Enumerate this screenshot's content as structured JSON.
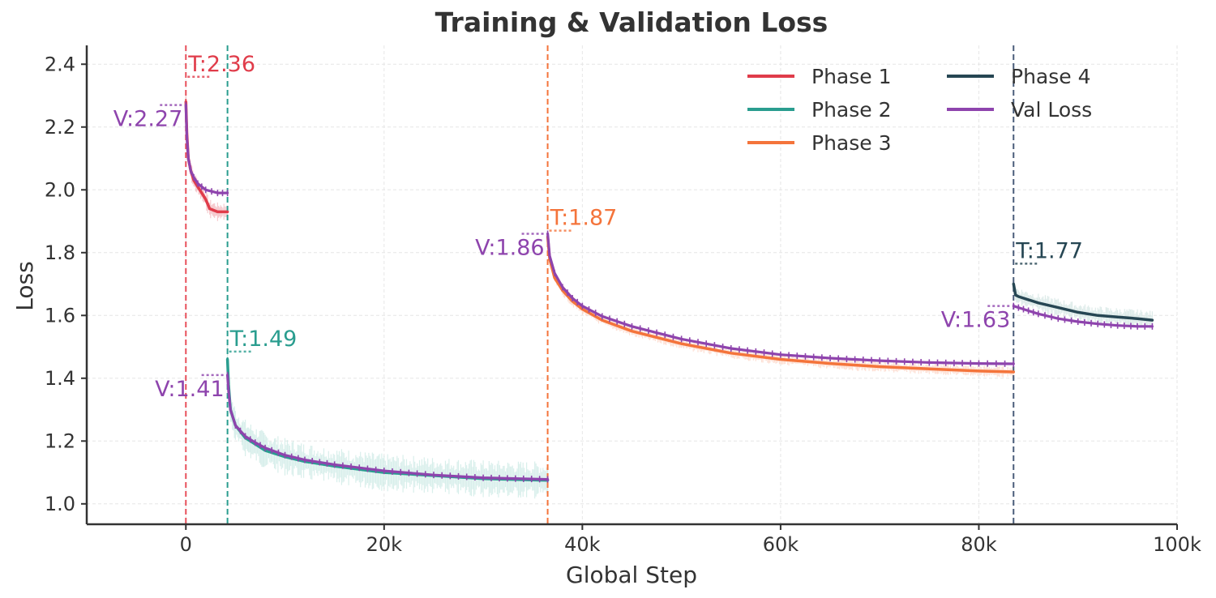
{
  "chart_data": {
    "type": "line",
    "title": "Training & Validation Loss",
    "xlabel": "Global Step",
    "ylabel": "Loss",
    "xlim": [
      -10000,
      100000
    ],
    "ylim": [
      0.935,
      2.46
    ],
    "xticks": [
      0,
      20000,
      40000,
      60000,
      80000,
      100000
    ],
    "xtick_labels": [
      "0",
      "20k",
      "40k",
      "60k",
      "80k",
      "100k"
    ],
    "yticks": [
      1.0,
      1.2,
      1.4,
      1.6,
      1.8,
      2.0,
      2.2,
      2.4
    ],
    "ytick_labels": [
      "1.0",
      "1.2",
      "1.4",
      "1.6",
      "1.8",
      "2.0",
      "2.2",
      "2.4"
    ],
    "grid": true,
    "legend_position": "top-right",
    "phase_boundaries": [
      {
        "x": 0,
        "color": "#e8505b"
      },
      {
        "x": 4200,
        "color": "#2a9d8f"
      },
      {
        "x": 36500,
        "color": "#f4743b"
      },
      {
        "x": 83500,
        "color": "#4a5d7a"
      }
    ],
    "series": [
      {
        "name": "Phase 1",
        "color": "#e03c4a",
        "band_color": "#f2b5bb",
        "x": [
          0,
          100,
          250,
          500,
          800,
          1200,
          1600,
          2000,
          2400,
          2800,
          3200,
          3600,
          4200
        ],
        "y": [
          2.28,
          2.18,
          2.1,
          2.06,
          2.03,
          2.01,
          1.99,
          1.97,
          1.94,
          1.935,
          1.93,
          1.93,
          1.93
        ]
      },
      {
        "name": "Phase 2",
        "color": "#2a9d8f",
        "band_color": "#c7e8e3",
        "x": [
          4200,
          4300,
          4500,
          5000,
          6000,
          7000,
          8000,
          10000,
          12000,
          15000,
          20000,
          25000,
          30000,
          36500
        ],
        "y": [
          1.46,
          1.38,
          1.3,
          1.25,
          1.21,
          1.19,
          1.17,
          1.15,
          1.135,
          1.12,
          1.1,
          1.09,
          1.08,
          1.075
        ]
      },
      {
        "name": "Phase 3",
        "color": "#f4743b",
        "band_color": "#fcd2c0",
        "x": [
          36500,
          36700,
          37200,
          38000,
          39000,
          40000,
          42000,
          45000,
          50000,
          55000,
          60000,
          65000,
          70000,
          75000,
          80000,
          83500
        ],
        "y": [
          1.85,
          1.78,
          1.72,
          1.68,
          1.645,
          1.62,
          1.585,
          1.55,
          1.51,
          1.48,
          1.46,
          1.447,
          1.437,
          1.43,
          1.423,
          1.42
        ]
      },
      {
        "name": "Phase 4",
        "color": "#264653",
        "band_color": "#cfe2df",
        "x": [
          83500,
          83700,
          84000,
          85000,
          86000,
          88000,
          90000,
          92000,
          94000,
          96000,
          97500
        ],
        "y": [
          1.7,
          1.665,
          1.66,
          1.65,
          1.64,
          1.625,
          1.61,
          1.6,
          1.595,
          1.59,
          1.585
        ]
      },
      {
        "name": "Val Loss",
        "color": "#8e44ad",
        "segments": [
          {
            "x": [
              0,
              100,
              250,
              500,
              800,
              1200,
              1600,
              2000,
              2600,
              3200,
              4200
            ],
            "y": [
              2.27,
              2.17,
              2.1,
              2.06,
              2.04,
              2.02,
              2.01,
              2.0,
              1.995,
              1.99,
              1.99
            ]
          },
          {
            "x": [
              4200,
              4300,
              4500,
              5000,
              6000,
              7000,
              8000,
              10000,
              12000,
              15000,
              20000,
              25000,
              30000,
              36500
            ],
            "y": [
              1.41,
              1.36,
              1.3,
              1.25,
              1.215,
              1.195,
              1.178,
              1.155,
              1.14,
              1.125,
              1.105,
              1.092,
              1.083,
              1.078
            ]
          },
          {
            "x": [
              36500,
              36700,
              37200,
              38000,
              39000,
              40000,
              42000,
              45000,
              50000,
              55000,
              60000,
              65000,
              70000,
              75000,
              80000,
              83500
            ],
            "y": [
              1.86,
              1.79,
              1.735,
              1.69,
              1.655,
              1.63,
              1.597,
              1.565,
              1.525,
              1.495,
              1.475,
              1.464,
              1.456,
              1.45,
              1.447,
              1.446
            ]
          },
          {
            "x": [
              83500,
              84000,
              85000,
              86000,
              88000,
              90000,
              92000,
              94000,
              96000,
              97500
            ],
            "y": [
              1.63,
              1.625,
              1.615,
              1.605,
              1.59,
              1.58,
              1.573,
              1.568,
              1.565,
              1.565
            ]
          }
        ]
      }
    ],
    "annotations": [
      {
        "text": "T:2.36",
        "x": 0,
        "y": 2.36,
        "color": "#e03c4a",
        "side": "right"
      },
      {
        "text": "V:2.27",
        "x": 0,
        "y": 2.27,
        "color": "#8e44ad",
        "side": "left"
      },
      {
        "text": "T:1.49",
        "x": 4200,
        "y": 1.485,
        "color": "#2a9d8f",
        "side": "right"
      },
      {
        "text": "V:1.41",
        "x": 4200,
        "y": 1.41,
        "color": "#8e44ad",
        "side": "left"
      },
      {
        "text": "T:1.87",
        "x": 36500,
        "y": 1.87,
        "color": "#f4743b",
        "side": "right"
      },
      {
        "text": "V:1.86",
        "x": 36500,
        "y": 1.86,
        "color": "#8e44ad",
        "side": "left"
      },
      {
        "text": "T:1.77",
        "x": 83500,
        "y": 1.765,
        "color": "#264653",
        "side": "right"
      },
      {
        "text": "V:1.63",
        "x": 83500,
        "y": 1.63,
        "color": "#8e44ad",
        "side": "left"
      }
    ],
    "legend": [
      {
        "label": "Phase 1",
        "color": "#e03c4a"
      },
      {
        "label": "Phase 2",
        "color": "#2a9d8f"
      },
      {
        "label": "Phase 3",
        "color": "#f4743b"
      },
      {
        "label": "Phase 4",
        "color": "#264653"
      },
      {
        "label": "Val Loss",
        "color": "#8e44ad"
      }
    ]
  }
}
